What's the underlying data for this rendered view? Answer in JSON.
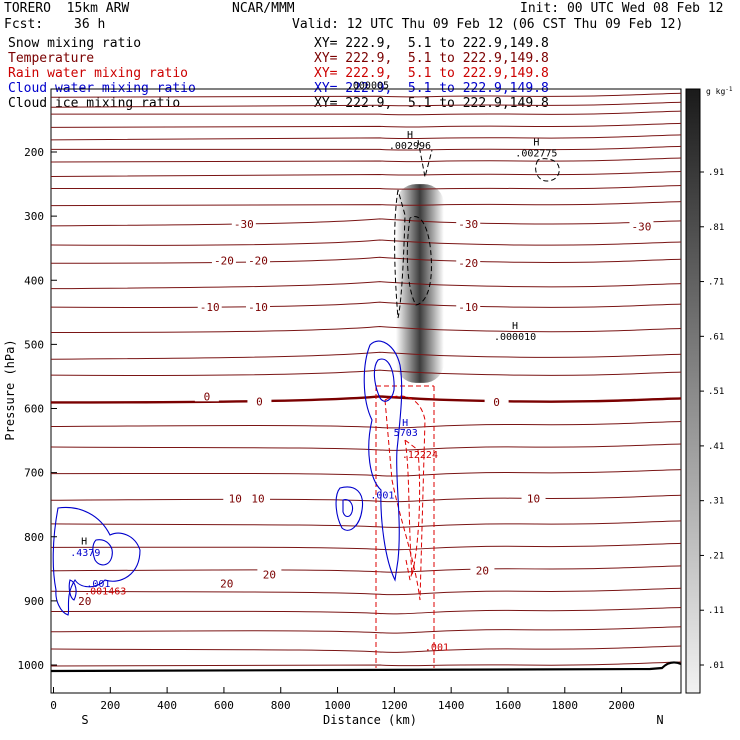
{
  "header": {
    "model": "TORERO  15km ARW",
    "org": "NCAR/MMM",
    "init": "Init: 00 UTC Wed 08 Feb 12",
    "fcst_label": "Fcst:",
    "fcst_value": "36 h",
    "valid": "Valid: 12 UTC Thu 09 Feb 12 (06 CST Thu 09 Feb 12)"
  },
  "fields": [
    {
      "name": "Snow mixing ratio",
      "color": "#000000",
      "xy": "XY= 222.9,  5.1 to 222.9,149.8"
    },
    {
      "name": "Temperature",
      "color": "#7a0000",
      "xy": "XY= 222.9,  5.1 to 222.9,149.8"
    },
    {
      "name": "Rain water mixing ratio",
      "color": "#cc0000",
      "xy": "XY= 222.9,  5.1 to 222.9,149.8"
    },
    {
      "name": "Cloud water mixing ratio",
      "color": "#0000cc",
      "xy": "XY= 222.9,  5.1 to 222.9,149.8"
    },
    {
      "name": "Cloud ice mixing ratio",
      "color": "#000000",
      "xy": "XY= 222.9,  5.1 to 222.9,149.8"
    }
  ],
  "chart_data": {
    "type": "heatmap",
    "xlabel": "Distance (km)",
    "ylabel": "Pressure (hPa)",
    "xlim": [
      0,
      2200
    ],
    "ylim": [
      1050,
      100
    ],
    "x_ticks": [
      0,
      200,
      400,
      600,
      800,
      1000,
      1200,
      1400,
      1600,
      1800,
      2000
    ],
    "y_ticks": [
      200,
      300,
      400,
      500,
      600,
      700,
      800,
      900,
      1000
    ],
    "x_end_labels": {
      "left": "S",
      "right": "N"
    },
    "colorbar": {
      "unit": "g kg",
      "unit_sup": "-1",
      "ticks": [
        ".91",
        ".81",
        ".71",
        ".61",
        ".51",
        ".41",
        ".31",
        ".21",
        ".11",
        ".01"
      ]
    },
    "snow_max_column": {
      "x": 1290,
      "p_top": 250,
      "p_bottom": 560
    },
    "temperature_contours": [
      {
        "label": "-30",
        "positions": [
          [
            670,
            312
          ],
          [
            1460,
            312
          ],
          [
            2070,
            316
          ]
        ]
      },
      {
        "label": "-20",
        "positions": [
          [
            600,
            369
          ],
          [
            720,
            369
          ],
          [
            1460,
            373
          ]
        ]
      },
      {
        "label": "-10",
        "positions": [
          [
            550,
            442
          ],
          [
            720,
            442
          ],
          [
            1460,
            442
          ]
        ]
      },
      {
        "label": "0",
        "positions": [
          [
            540,
            581
          ],
          [
            725,
            589
          ],
          [
            1560,
            590
          ]
        ]
      },
      {
        "label": "10",
        "positions": [
          [
            640,
            740
          ],
          [
            720,
            740
          ],
          [
            1690,
            740
          ]
        ]
      },
      {
        "label": "20",
        "positions": [
          [
            110,
            900
          ],
          [
            610,
            873
          ],
          [
            760,
            859
          ],
          [
            1510,
            853
          ]
        ]
      }
    ],
    "annotations": [
      {
        "text": "H",
        "color": "#000000",
        "x": 1255,
        "p": 178
      },
      {
        "text": ".002996",
        "color": "#000000",
        "x": 1255,
        "p": 195
      },
      {
        "text": "H",
        "color": "#000000",
        "x": 1700,
        "p": 190
      },
      {
        "text": ".002775",
        "color": "#000000",
        "x": 1700,
        "p": 207
      },
      {
        "text": "H",
        "color": "#000000",
        "x": 1625,
        "p": 476
      },
      {
        "text": ".000010",
        "color": "#000000",
        "x": 1625,
        "p": 493
      },
      {
        "text": "H",
        "color": "#0000cc",
        "x": 1238,
        "p": 627
      },
      {
        "text": "5703",
        "color": "#0000cc",
        "x": 1240,
        "p": 643
      },
      {
        "text": ".12224",
        "color": "#cc0000",
        "x": 1290,
        "p": 677
      },
      {
        "text": ".001",
        "color": "#0000cc",
        "x": 1158,
        "p": 740
      },
      {
        "text": "H",
        "color": "#000000",
        "x": 108,
        "p": 812
      },
      {
        "text": ".4379",
        "color": "#0000cc",
        "x": 112,
        "p": 830
      },
      {
        "text": ".001",
        "color": "#0000cc",
        "x": 158,
        "p": 878
      },
      {
        "text": ".001463",
        "color": "#cc0000",
        "x": 182,
        "p": 890
      },
      {
        "text": ".001",
        "color": "#cc0000",
        "x": 1350,
        "p": 977
      },
      {
        "text": ".000005",
        "color": "#000000",
        "x": 1107,
        "p": 101
      }
    ]
  }
}
